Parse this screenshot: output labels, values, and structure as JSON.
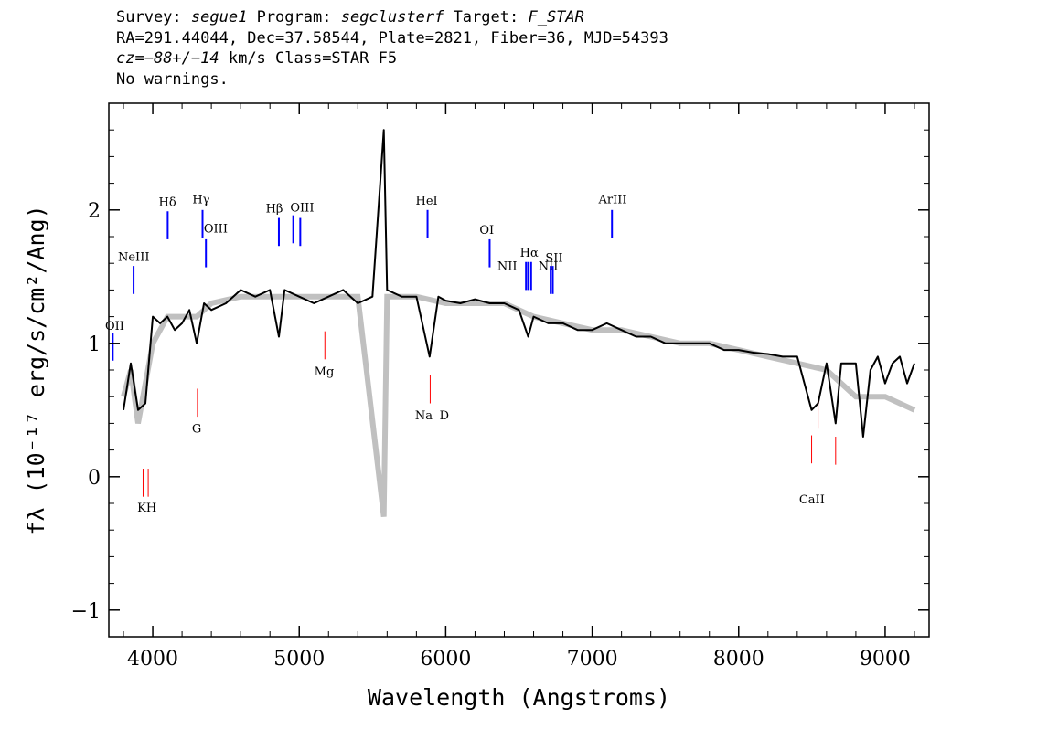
{
  "header": {
    "survey_label": "Survey:",
    "survey": "segue1",
    "program_label": "Program:",
    "program": "segclusterf",
    "target_label": "Target:",
    "target": "F_STAR",
    "line2": "RA=291.44044, Dec=37.58544, Plate=2821, Fiber=36, MJD=54393",
    "cz_label": "cz=",
    "cz_value": "−88+/−14",
    "cz_rest": " km/s Class=STAR F5",
    "line4": "No warnings."
  },
  "chart_data": {
    "type": "line",
    "title": "",
    "xlabel": "Wavelength (Angstroms)",
    "ylabel": "fλ (10⁻¹⁷ erg/s/cm²/Ang)",
    "xlim": [
      3700,
      9300
    ],
    "ylim": [
      -1.2,
      2.8
    ],
    "x_ticks": [
      4000,
      5000,
      6000,
      7000,
      8000,
      9000
    ],
    "y_ticks": [
      -1,
      0,
      1,
      2
    ],
    "colors": {
      "flux": "#000000",
      "noise": "#c0c0c0",
      "emission": "#0000ff",
      "absorption": "#ff0000"
    },
    "series": [
      {
        "role": "smoothed flux",
        "x": [
          3800,
          3850,
          3900,
          3950,
          4000,
          4050,
          4100,
          4150,
          4200,
          4250,
          4300,
          4350,
          4400,
          4500,
          4600,
          4700,
          4800,
          4861,
          4900,
          5000,
          5100,
          5200,
          5300,
          5400,
          5500,
          5577,
          5600,
          5700,
          5800,
          5890,
          5950,
          6000,
          6100,
          6200,
          6300,
          6400,
          6500,
          6563,
          6600,
          6700,
          6800,
          6900,
          7000,
          7100,
          7200,
          7300,
          7400,
          7500,
          7600,
          7700,
          7800,
          7900,
          8000,
          8100,
          8200,
          8300,
          8400,
          8498,
          8542,
          8600,
          8662,
          8700,
          8800,
          8850,
          8900,
          8950,
          9000,
          9050,
          9100,
          9150,
          9200
        ],
        "values": [
          0.5,
          0.85,
          0.5,
          0.55,
          1.2,
          1.15,
          1.2,
          1.1,
          1.15,
          1.25,
          1.0,
          1.3,
          1.25,
          1.3,
          1.4,
          1.35,
          1.4,
          1.05,
          1.4,
          1.35,
          1.3,
          1.35,
          1.4,
          1.3,
          1.35,
          2.6,
          1.4,
          1.35,
          1.35,
          0.9,
          1.35,
          1.32,
          1.3,
          1.33,
          1.3,
          1.3,
          1.25,
          1.05,
          1.2,
          1.15,
          1.15,
          1.1,
          1.1,
          1.15,
          1.1,
          1.05,
          1.05,
          1.0,
          1.0,
          1.0,
          1.0,
          0.95,
          0.95,
          0.93,
          0.92,
          0.9,
          0.9,
          0.5,
          0.55,
          0.85,
          0.4,
          0.85,
          0.85,
          0.3,
          0.8,
          0.9,
          0.7,
          0.85,
          0.9,
          0.7,
          0.85
        ]
      },
      {
        "role": "noise",
        "x": [
          3800,
          3850,
          3900,
          4000,
          4100,
          4200,
          4300,
          4400,
          4600,
          4800,
          5000,
          5200,
          5400,
          5577,
          5600,
          5800,
          6000,
          6200,
          6400,
          6600,
          6800,
          7000,
          7200,
          7400,
          7600,
          7800,
          8000,
          8200,
          8400,
          8600,
          8800,
          9000,
          9200
        ],
        "values": [
          0.6,
          0.8,
          0.4,
          1.0,
          1.2,
          1.2,
          1.2,
          1.3,
          1.35,
          1.35,
          1.35,
          1.35,
          1.35,
          -0.3,
          1.35,
          1.35,
          1.3,
          1.3,
          1.3,
          1.2,
          1.15,
          1.1,
          1.1,
          1.05,
          1.0,
          1.0,
          0.95,
          0.9,
          0.85,
          0.8,
          0.6,
          0.6,
          0.5
        ]
      }
    ],
    "emission_lines": [
      {
        "label": "OII",
        "wavelength": 3727,
        "y_low": 0.87,
        "y_high": 1.08
      },
      {
        "label": "NeIII",
        "wavelength": 3869,
        "y_low": 1.37,
        "y_high": 1.58
      },
      {
        "label": "Hδ",
        "wavelength": 4102,
        "y_low": 1.78,
        "y_high": 1.99
      },
      {
        "label": "Hγ",
        "wavelength": 4340,
        "y_low": 1.79,
        "y_high": 2.0
      },
      {
        "label": "OIII",
        "wavelength": 4363,
        "y_low": 1.57,
        "y_high": 1.78
      },
      {
        "label": "Hβ",
        "wavelength": 4861,
        "y_low": 1.73,
        "y_high": 1.94
      },
      {
        "label": "OIII",
        "wavelength": 4959,
        "y_low": 1.75,
        "y_high": 1.96
      },
      {
        "label": "OIII",
        "wavelength": 5007,
        "y_low": 1.73,
        "y_high": 1.94
      },
      {
        "label": "HeI",
        "wavelength": 5876,
        "y_low": 1.79,
        "y_high": 2.0
      },
      {
        "label": "OI",
        "wavelength": 6300,
        "y_low": 1.57,
        "y_high": 1.78
      },
      {
        "label": "NII",
        "wavelength": 6548,
        "y_low": 1.4,
        "y_high": 1.61
      },
      {
        "label": "Hα",
        "wavelength": 6563,
        "y_low": 1.4,
        "y_high": 1.61
      },
      {
        "label": "NII",
        "wavelength": 6583,
        "y_low": 1.4,
        "y_high": 1.61
      },
      {
        "label": "SII",
        "wavelength": 6716,
        "y_low": 1.37,
        "y_high": 1.58
      },
      {
        "label": "SII",
        "wavelength": 6731,
        "y_low": 1.37,
        "y_high": 1.58
      },
      {
        "label": "ArIII",
        "wavelength": 7135,
        "y_low": 1.79,
        "y_high": 2.0
      }
    ],
    "absorption_lines": [
      {
        "label": "K",
        "wavelength": 3934,
        "y_low": -0.15,
        "y_high": 0.06
      },
      {
        "label": "H",
        "wavelength": 3969,
        "y_low": -0.15,
        "y_high": 0.06
      },
      {
        "label": "G",
        "wavelength": 4305,
        "y_low": 0.45,
        "y_high": 0.66
      },
      {
        "label": "Mg",
        "wavelength": 5175,
        "y_low": 0.88,
        "y_high": 1.09
      },
      {
        "label": "Na",
        "wavelength": 5894,
        "y_low": 0.55,
        "y_high": 0.76
      },
      {
        "label": "CaII",
        "wavelength": 8498,
        "y_low": 0.1,
        "y_high": 0.31
      },
      {
        "label": "CaII",
        "wavelength": 8542,
        "y_low": 0.36,
        "y_high": 0.57
      },
      {
        "label": "CaII",
        "wavelength": 8662,
        "y_low": 0.09,
        "y_high": 0.3
      }
    ],
    "line_labels": [
      {
        "text": "OII",
        "anchor": 3740,
        "y": 1.1
      },
      {
        "text": "NeIII",
        "anchor": 3870,
        "y": 1.62
      },
      {
        "text": "Hδ",
        "anchor": 4100,
        "y": 2.03
      },
      {
        "text": "Hγ",
        "anchor": 4330,
        "y": 2.05
      },
      {
        "text": "OIII",
        "anchor": 4430,
        "y": 1.83
      },
      {
        "text": "Hβ",
        "anchor": 4830,
        "y": 1.98
      },
      {
        "text": "OIII",
        "anchor": 5020,
        "y": 1.99
      },
      {
        "text": "HeI",
        "anchor": 5870,
        "y": 2.04
      },
      {
        "text": "OI",
        "anchor": 6280,
        "y": 1.82
      },
      {
        "text": "NII",
        "anchor": 6420,
        "y": 1.55
      },
      {
        "text": "Hα",
        "anchor": 6570,
        "y": 1.65
      },
      {
        "text": "SII",
        "anchor": 6740,
        "y": 1.61
      },
      {
        "text": "NII",
        "anchor": 6700,
        "y": 1.55
      },
      {
        "text": "ArIII",
        "anchor": 7140,
        "y": 2.05
      },
      {
        "text": "Mg",
        "anchor": 5170,
        "y": 0.76
      },
      {
        "text": "Na",
        "anchor": 5850,
        "y": 0.43
      },
      {
        "text": "D",
        "anchor": 5990,
        "y": 0.43
      },
      {
        "text": "G",
        "anchor": 4300,
        "y": 0.33
      },
      {
        "text": "KH",
        "anchor": 3960,
        "y": -0.26
      },
      {
        "text": "CaII",
        "anchor": 8500,
        "y": -0.2
      }
    ]
  }
}
